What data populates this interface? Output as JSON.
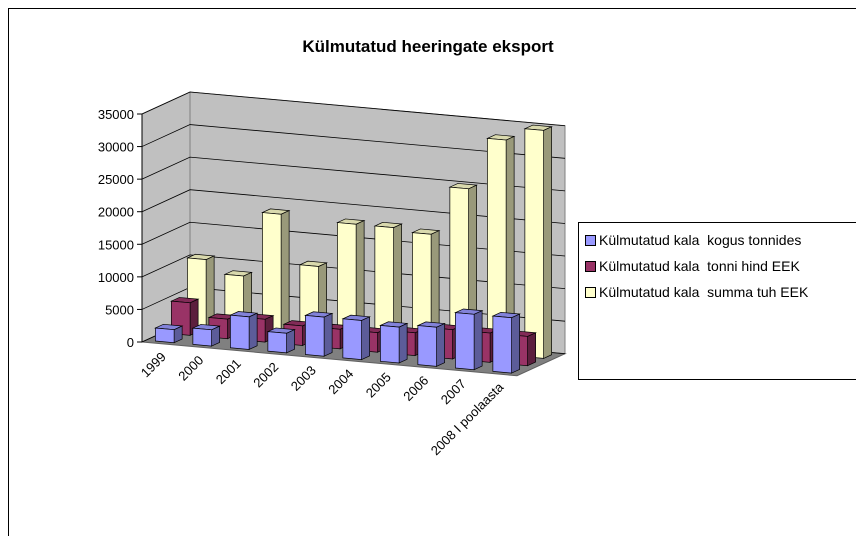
{
  "chart_data": {
    "type": "bar3d",
    "title": "Külmutatud heeringate eksport",
    "categories": [
      "1999",
      "2000",
      "2001",
      "2002",
      "2003",
      "2004",
      "2005",
      "2006",
      "2007",
      "2008 I poolaasta"
    ],
    "series": [
      {
        "name": "Külmutatud kala  kogus tonnides",
        "color": "#9999ff",
        "values": [
          2000,
          2500,
          5000,
          3000,
          6000,
          6000,
          5500,
          6000,
          8500,
          8500
        ]
      },
      {
        "name": "Külmutatud kala  tonni hind EEK",
        "color": "#993366",
        "values": [
          5000,
          3000,
          3500,
          3000,
          3000,
          3000,
          3500,
          4500,
          4500,
          4500
        ]
      },
      {
        "name": "Külmutatud kala  summa tuh EEK",
        "color": "#ffffcc",
        "values": [
          10500,
          8500,
          18500,
          11000,
          18000,
          18000,
          17500,
          25000,
          33000,
          35000
        ]
      }
    ],
    "ylim": [
      0,
      35000
    ],
    "yticks": [
      0,
      5000,
      10000,
      15000,
      20000,
      25000,
      30000,
      35000
    ],
    "grid": true,
    "legend": "right"
  }
}
